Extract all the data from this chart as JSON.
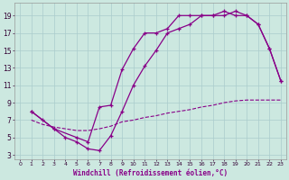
{
  "bg_color": "#cce8e0",
  "grid_color": "#aacccc",
  "line_color": "#880088",
  "xlabel": "Windchill (Refroidissement éolien,°C)",
  "xlabel_color": "#880088",
  "xlim": [
    -0.5,
    23.5
  ],
  "ylim": [
    2.5,
    20.5
  ],
  "xticks": [
    0,
    1,
    2,
    3,
    4,
    5,
    6,
    7,
    8,
    9,
    10,
    11,
    12,
    13,
    14,
    15,
    16,
    17,
    18,
    19,
    20,
    21,
    22,
    23
  ],
  "yticks": [
    3,
    5,
    7,
    9,
    11,
    13,
    15,
    17,
    19
  ],
  "line1_x": [
    1,
    2,
    3,
    5,
    6,
    7,
    8,
    9,
    10,
    11,
    12,
    13,
    14,
    15,
    16,
    17,
    18,
    19,
    20,
    21,
    22,
    23
  ],
  "line1_y": [
    8,
    7,
    6,
    5,
    4.5,
    8.5,
    8.7,
    12.8,
    15.2,
    17,
    17,
    17.5,
    19,
    19,
    19,
    19,
    19.5,
    19,
    19,
    18,
    15.2,
    11.5
  ],
  "line2_x": [
    1,
    3,
    4,
    5,
    6,
    7,
    8,
    9,
    10,
    11,
    12,
    13,
    14,
    15,
    16,
    17,
    18,
    19,
    20,
    21,
    22,
    23
  ],
  "line2_y": [
    8,
    6,
    5,
    4.5,
    3.7,
    3.5,
    5.2,
    8.0,
    11.0,
    13.2,
    15.0,
    17.0,
    17.5,
    18.0,
    19.0,
    19.0,
    19.0,
    19.5,
    19.0,
    18.0,
    15.2,
    11.5
  ],
  "line3_x": [
    1,
    2,
    3,
    4,
    5,
    6,
    7,
    8,
    9,
    10,
    11,
    12,
    13,
    14,
    15,
    16,
    17,
    18,
    19,
    20,
    21,
    22,
    23
  ],
  "line3_y": [
    7.0,
    6.5,
    6.2,
    6.0,
    5.8,
    5.8,
    6.0,
    6.3,
    6.8,
    7.0,
    7.3,
    7.5,
    7.8,
    8.0,
    8.2,
    8.5,
    8.7,
    9.0,
    9.2,
    9.3,
    9.3,
    9.3,
    9.3
  ]
}
